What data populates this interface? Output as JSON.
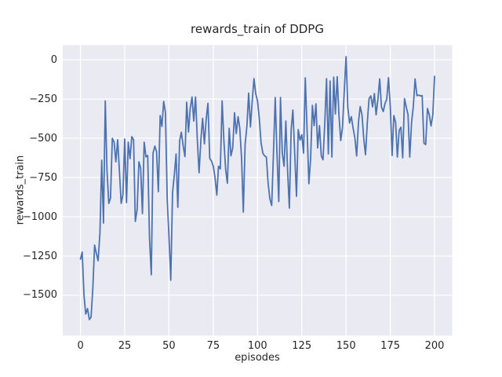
{
  "chart_data": {
    "type": "line",
    "title": "rewards_train of DDPG",
    "xlabel": "episodes",
    "ylabel": "rewards_train",
    "xlim": [
      -10,
      210
    ],
    "ylim": [
      -1757,
      93
    ],
    "xticks": [
      0,
      25,
      50,
      75,
      100,
      125,
      150,
      175,
      200
    ],
    "yticks": [
      0,
      -250,
      -500,
      -750,
      -1000,
      -1250,
      -1500
    ],
    "grid": true,
    "legend": false,
    "colors": {
      "line": "#4c72b0",
      "axes_background": "#eaeaf2",
      "grid": "#ffffff",
      "text": "#262626",
      "figure_background": "#ffffff"
    },
    "series": [
      {
        "name": "rewards_train",
        "x_start": 0,
        "x_step": 1,
        "values": [
          -1270,
          -1225,
          -1500,
          -1620,
          -1585,
          -1655,
          -1640,
          -1450,
          -1180,
          -1235,
          -1280,
          -1105,
          -640,
          -1040,
          -262,
          -705,
          -915,
          -880,
          -500,
          -525,
          -650,
          -510,
          -705,
          -915,
          -860,
          -505,
          -910,
          -525,
          -630,
          -490,
          -510,
          -1030,
          -955,
          -650,
          -690,
          -980,
          -525,
          -618,
          -610,
          -1135,
          -1370,
          -595,
          -550,
          -585,
          -840,
          -355,
          -425,
          -265,
          -335,
          -890,
          -1120,
          -1405,
          -845,
          -735,
          -600,
          -940,
          -515,
          -462,
          -548,
          -617,
          -270,
          -460,
          -310,
          -237,
          -390,
          -237,
          -512,
          -720,
          -512,
          -373,
          -536,
          -381,
          -277,
          -628,
          -645,
          -678,
          -750,
          -862,
          -678,
          -695,
          -262,
          -512,
          -700,
          -786,
          -437,
          -612,
          -562,
          -337,
          -470,
          -362,
          -437,
          -628,
          -970,
          -540,
          -420,
          -212,
          -428,
          -265,
          -120,
          -215,
          -262,
          -375,
          -528,
          -595,
          -612,
          -620,
          -785,
          -887,
          -928,
          -600,
          -240,
          -595,
          -903,
          -240,
          -595,
          -678,
          -390,
          -712,
          -945,
          -445,
          -320,
          -595,
          -870,
          -445,
          -512,
          -478,
          -595,
          -115,
          -445,
          -790,
          -630,
          -290,
          -420,
          -280,
          -562,
          -420,
          -612,
          -637,
          -400,
          -120,
          -600,
          -135,
          -620,
          -110,
          -345,
          -108,
          -350,
          -515,
          -432,
          -200,
          20,
          -303,
          -403,
          -362,
          -437,
          -500,
          -613,
          -400,
          -298,
          -350,
          -500,
          -605,
          -400,
          -247,
          -230,
          -300,
          -215,
          -350,
          -250,
          -122,
          -300,
          -330,
          -280,
          -250,
          -114,
          -300,
          -610,
          -355,
          -400,
          -620,
          -450,
          -430,
          -625,
          -247,
          -300,
          -350,
          -620,
          -400,
          -300,
          -122,
          -228,
          -225,
          -230,
          -228,
          -532,
          -540,
          -310,
          -350,
          -422,
          -350,
          -105
        ]
      }
    ]
  }
}
